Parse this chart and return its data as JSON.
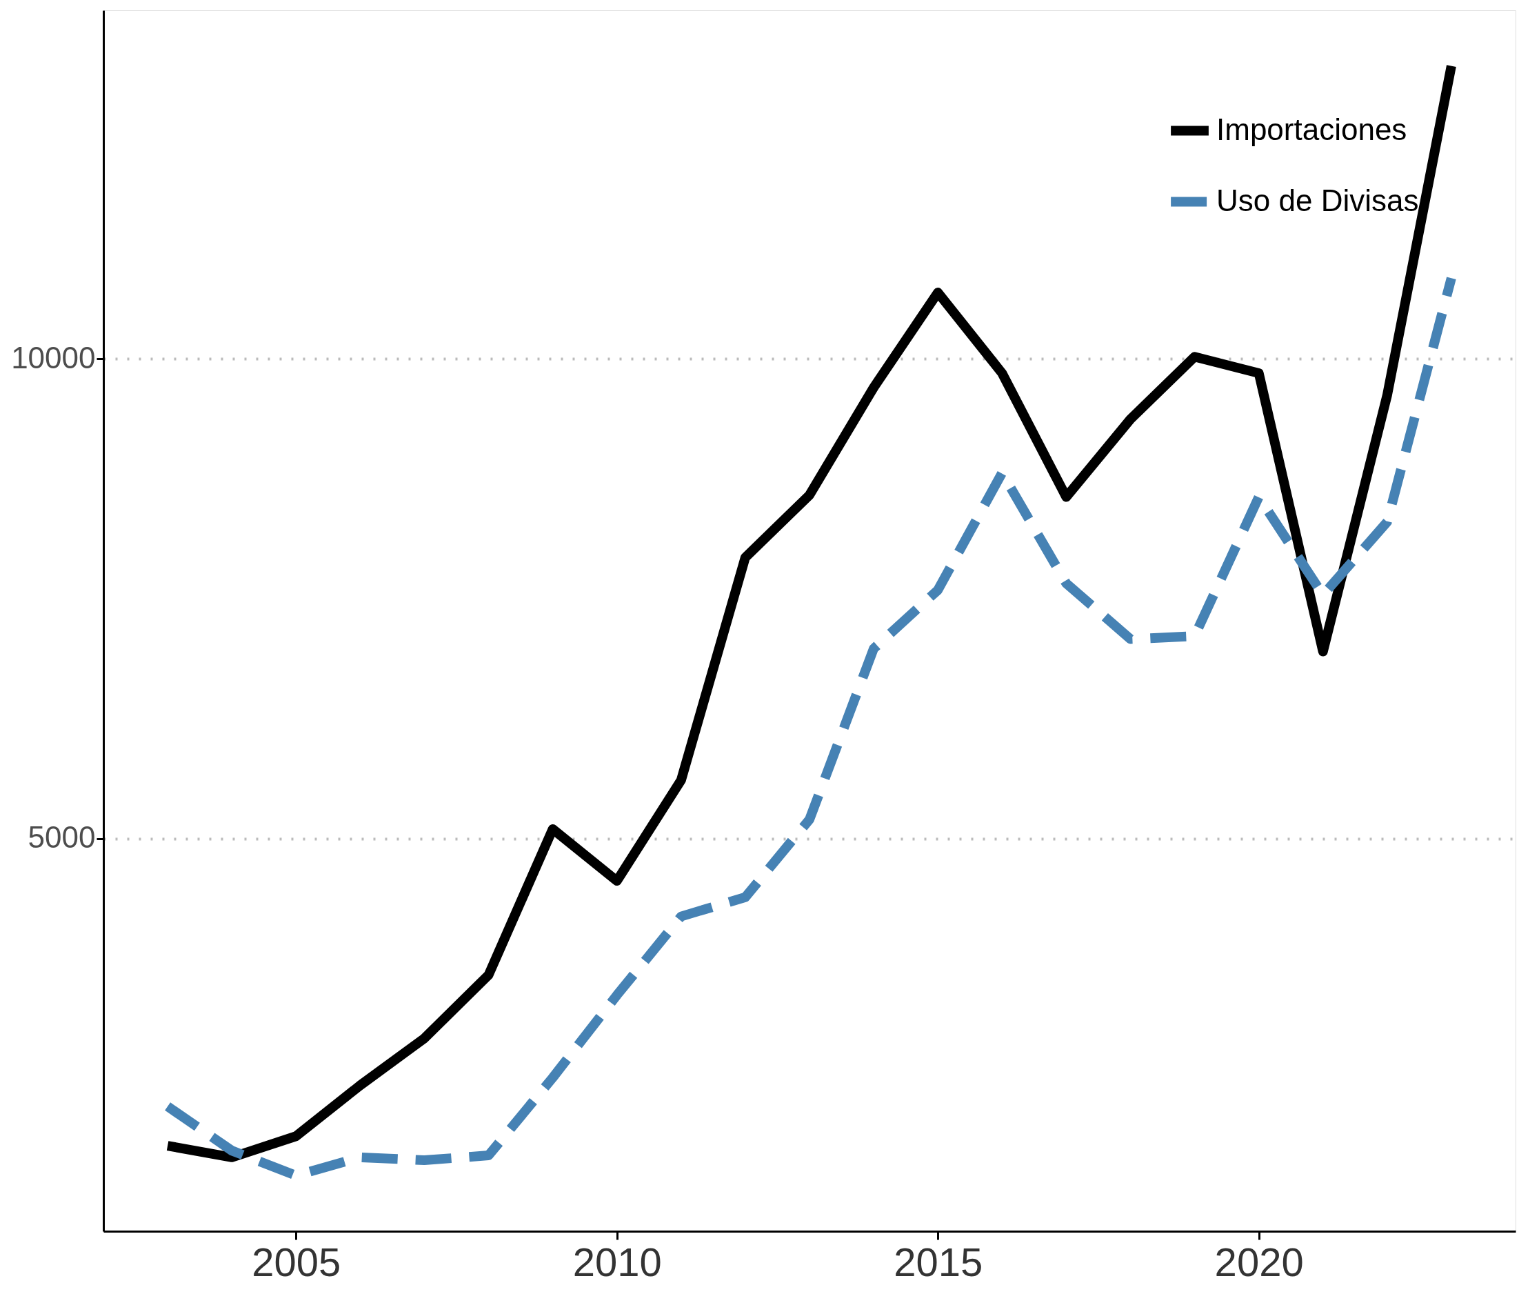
{
  "chart_data": {
    "type": "line",
    "x": [
      2003,
      2004,
      2005,
      2006,
      2007,
      2008,
      2009,
      2010,
      2011,
      2012,
      2013,
      2014,
      2015,
      2016,
      2017,
      2018,
      2019,
      2020,
      2021,
      2022,
      2023
    ],
    "series": [
      {
        "name": "Importaciones",
        "color": "#000000",
        "line_style": "solid",
        "values": [
          1800,
          1680,
          1900,
          2430,
          2920,
          3580,
          5100,
          4560,
          5610,
          7930,
          8580,
          9700,
          10690,
          9850,
          8560,
          9370,
          10020,
          9850,
          6950,
          9620,
          13050
        ]
      },
      {
        "name": "Uso de Divisas",
        "color": "#4682b4",
        "line_style": "dashed",
        "values": [
          2210,
          1750,
          1490,
          1680,
          1650,
          1700,
          2510,
          3370,
          4190,
          4390,
          5200,
          6980,
          7590,
          8810,
          7660,
          7080,
          7110,
          8560,
          7540,
          8300,
          10840
        ]
      }
    ],
    "xlim": [
      2002,
      2024
    ],
    "xticks": [
      2005,
      2010,
      2015,
      2020
    ],
    "ylim": [
      910,
      13630
    ],
    "yticks": [
      5000,
      10000
    ],
    "grid": "y",
    "legend": "top right"
  }
}
